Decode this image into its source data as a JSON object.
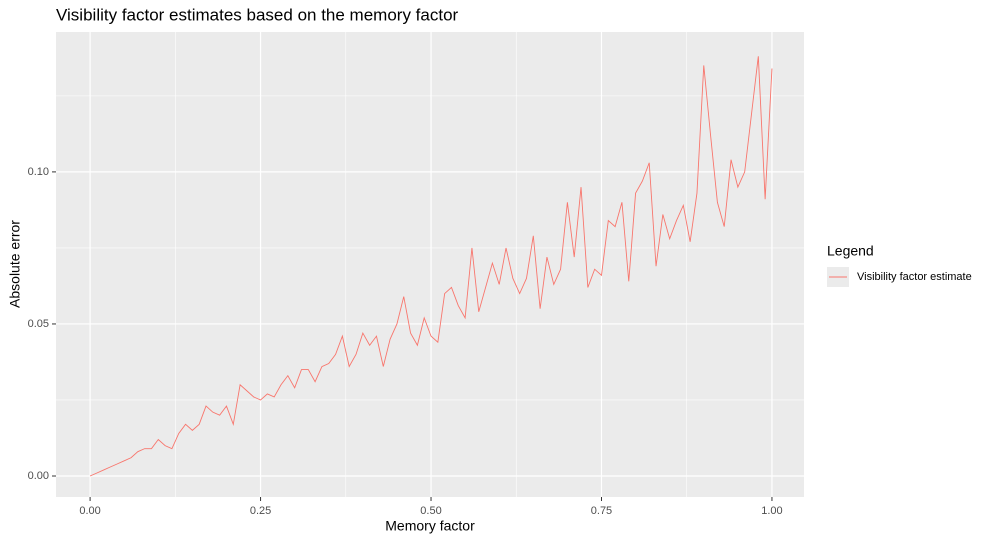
{
  "chart_data": {
    "type": "line",
    "title": "Visibility factor estimates based on the memory factor",
    "x_label": "Memory factor",
    "y_label": "Absolute error",
    "legend_title": "Legend",
    "legend_position": "right",
    "grid": true,
    "x": [
      0,
      0.01,
      0.02,
      0.03,
      0.04,
      0.05,
      0.06,
      0.07,
      0.08,
      0.09,
      0.1,
      0.11,
      0.12,
      0.13,
      0.14,
      0.15,
      0.16,
      0.17,
      0.18,
      0.19,
      0.2,
      0.21,
      0.22,
      0.23,
      0.24,
      0.25,
      0.26,
      0.27,
      0.28,
      0.29,
      0.3,
      0.31,
      0.32,
      0.33,
      0.34,
      0.35,
      0.36,
      0.37,
      0.38,
      0.39,
      0.4,
      0.41,
      0.42,
      0.43,
      0.44,
      0.45,
      0.46,
      0.47,
      0.48,
      0.49,
      0.5,
      0.51,
      0.52,
      0.53,
      0.54,
      0.55,
      0.56,
      0.57,
      0.58,
      0.59,
      0.6,
      0.61,
      0.62,
      0.63,
      0.64,
      0.65,
      0.66,
      0.67,
      0.68,
      0.69,
      0.7,
      0.71,
      0.72,
      0.73,
      0.74,
      0.75,
      0.76,
      0.77,
      0.78,
      0.79,
      0.8,
      0.81,
      0.82,
      0.83,
      0.84,
      0.85,
      0.86,
      0.87,
      0.88,
      0.89,
      0.9,
      0.91,
      0.92,
      0.93,
      0.94,
      0.95,
      0.96,
      0.97,
      0.98,
      0.99,
      1
    ],
    "series": [
      {
        "name": "Visibility factor estimate",
        "color": "#f8766d",
        "values": [
          0,
          0.001,
          0.002,
          0.003,
          0.004,
          0.005,
          0.006,
          0.008,
          0.009,
          0.009,
          0.012,
          0.01,
          0.009,
          0.014,
          0.017,
          0.015,
          0.017,
          0.023,
          0.021,
          0.02,
          0.023,
          0.017,
          0.03,
          0.028,
          0.026,
          0.025,
          0.027,
          0.026,
          0.03,
          0.033,
          0.029,
          0.035,
          0.035,
          0.031,
          0.036,
          0.037,
          0.04,
          0.046,
          0.036,
          0.04,
          0.047,
          0.043,
          0.046,
          0.036,
          0.045,
          0.05,
          0.059,
          0.047,
          0.043,
          0.052,
          0.046,
          0.044,
          0.06,
          0.062,
          0.056,
          0.052,
          0.075,
          0.054,
          0.062,
          0.07,
          0.063,
          0.075,
          0.065,
          0.06,
          0.065,
          0.079,
          0.055,
          0.072,
          0.063,
          0.068,
          0.09,
          0.072,
          0.095,
          0.062,
          0.068,
          0.066,
          0.084,
          0.082,
          0.09,
          0.064,
          0.093,
          0.097,
          0.103,
          0.069,
          0.086,
          0.078,
          0.084,
          0.089,
          0.077,
          0.093,
          0.135,
          0.112,
          0.09,
          0.082,
          0.104,
          0.095,
          0.1,
          0.119,
          0.138,
          0.091,
          0.134
        ]
      }
    ],
    "xlim": [
      -0.05,
      1.047
    ],
    "ylim": [
      -0.0069,
      0.146
    ],
    "xticks": [
      {
        "value": 0,
        "label": "0.00"
      },
      {
        "value": 0.25,
        "label": "0.25"
      },
      {
        "value": 0.5,
        "label": "0.50"
      },
      {
        "value": 0.75,
        "label": "0.75"
      },
      {
        "value": 1,
        "label": "1.00"
      }
    ],
    "yticks": [
      {
        "value": 0,
        "label": "0.00"
      },
      {
        "value": 0.05,
        "label": "0.05"
      },
      {
        "value": 0.1,
        "label": "0.10"
      }
    ],
    "x_minor_ticks": [
      0.125,
      0.375,
      0.625,
      0.875
    ],
    "y_minor_ticks": [
      0.025,
      0.075,
      0.125
    ]
  }
}
